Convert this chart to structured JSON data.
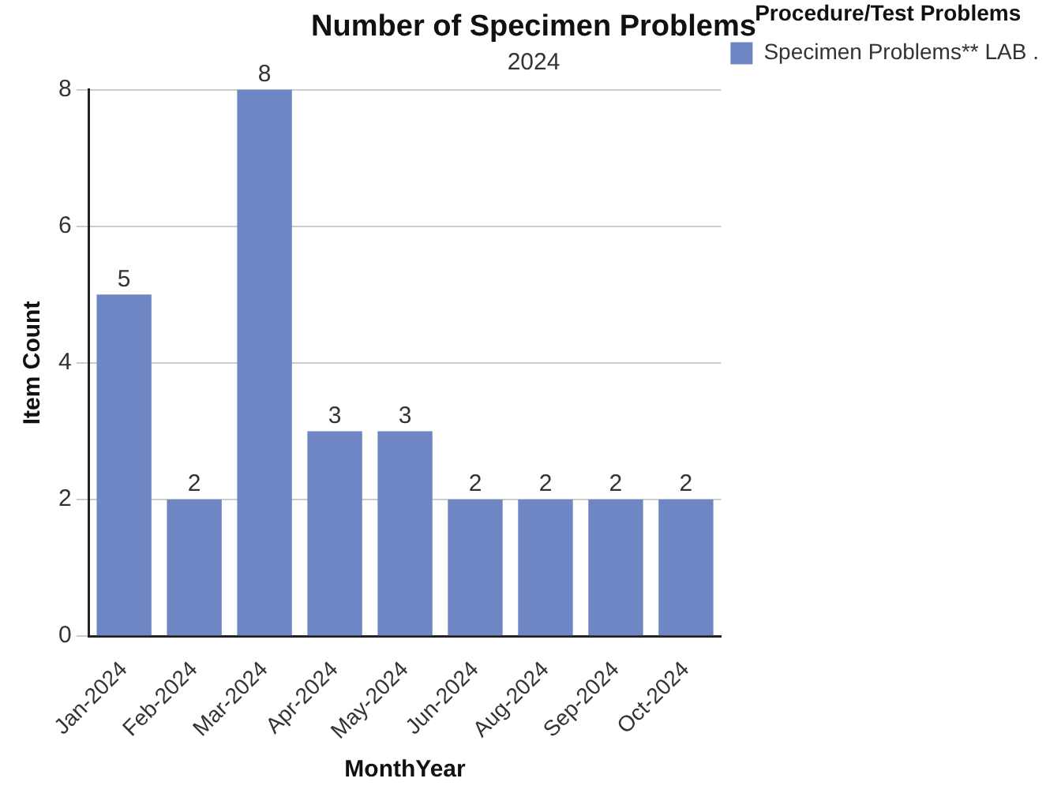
{
  "chart_data": {
    "type": "bar",
    "title": "Number of Specimen Problems",
    "subtitle": "2024",
    "xlabel": "MonthYear",
    "ylabel": "Item Count",
    "legend_title": "Procedure/Test Problems",
    "categories": [
      "Jan-2024",
      "Feb-2024",
      "Mar-2024",
      "Apr-2024",
      "May-2024",
      "Jun-2024",
      "Aug-2024",
      "Sep-2024",
      "Oct-2024"
    ],
    "series": [
      {
        "name": "Specimen Problems** LAB .",
        "color": "#6f86c4",
        "values": [
          5,
          2,
          8,
          3,
          3,
          2,
          2,
          2,
          2
        ]
      }
    ],
    "ylim": [
      0,
      8
    ],
    "yticks": [
      0,
      2,
      4,
      6,
      8
    ],
    "grid": "y",
    "legend": "top right",
    "data_labels": true
  }
}
